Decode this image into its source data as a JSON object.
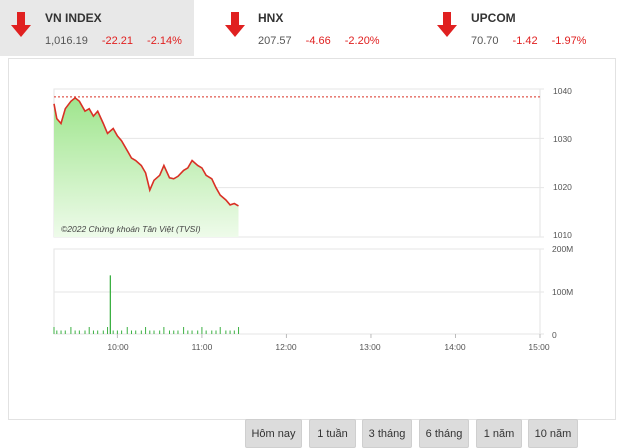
{
  "tabs": [
    {
      "name": "VN INDEX",
      "value": "1,016.19",
      "change": "-22.21",
      "percent": "-2.14%",
      "active": true
    },
    {
      "name": "HNX",
      "value": "207.57",
      "change": "-4.66",
      "percent": "-2.20%",
      "active": false
    },
    {
      "name": "UPCOM",
      "value": "70.70",
      "change": "-1.42",
      "percent": "-1.97%",
      "active": false
    }
  ],
  "chart": {
    "copyright": "©2022 Chứng khoán Tân Việt (TVSI)",
    "price_ticks": [
      "1040",
      "1030",
      "1020",
      "1010"
    ],
    "volume_ticks": [
      "200M",
      "100M",
      "0"
    ],
    "time_ticks": [
      "10:00",
      "11:00",
      "12:00",
      "13:00",
      "14:00",
      "15:00"
    ]
  },
  "chart_data": {
    "type": "line",
    "reference_level": 1038.4,
    "ylim": [
      1010,
      1040
    ],
    "x_range": [
      "09:15",
      "15:00"
    ],
    "price": [
      [
        "09:15",
        1037
      ],
      [
        "09:17",
        1034
      ],
      [
        "09:20",
        1033
      ],
      [
        "09:23",
        1036
      ],
      [
        "09:27",
        1037.5
      ],
      [
        "09:30",
        1038.2
      ],
      [
        "09:33",
        1037.5
      ],
      [
        "09:37",
        1035.5
      ],
      [
        "09:40",
        1036
      ],
      [
        "09:43",
        1034.5
      ],
      [
        "09:46",
        1035.5
      ],
      [
        "09:50",
        1033
      ],
      [
        "09:53",
        1031
      ],
      [
        "09:57",
        1032
      ],
      [
        "10:00",
        1030.5
      ],
      [
        "10:03",
        1029.5
      ],
      [
        "10:07",
        1027.5
      ],
      [
        "10:10",
        1026
      ],
      [
        "10:13",
        1025.5
      ],
      [
        "10:17",
        1024.5
      ],
      [
        "10:20",
        1023
      ],
      [
        "10:23",
        1019.5
      ],
      [
        "10:26",
        1021.5
      ],
      [
        "10:30",
        1022.5
      ],
      [
        "10:33",
        1024.5
      ],
      [
        "10:37",
        1022
      ],
      [
        "10:40",
        1021.8
      ],
      [
        "10:43",
        1022.3
      ],
      [
        "10:47",
        1023.5
      ],
      [
        "10:50",
        1024
      ],
      [
        "10:53",
        1025.5
      ],
      [
        "10:57",
        1024.5
      ],
      [
        "11:00",
        1024
      ],
      [
        "11:03",
        1022.5
      ],
      [
        "11:07",
        1021.8
      ],
      [
        "11:10",
        1020
      ],
      [
        "11:13",
        1018.5
      ],
      [
        "11:17",
        1017.5
      ],
      [
        "11:20",
        1016.5
      ],
      [
        "11:23",
        1016.8
      ],
      [
        "11:26",
        1016.3
      ]
    ],
    "volume_spike": {
      "time": "09:55",
      "value": 138
    }
  },
  "buttons": [
    "Hôm nay",
    "1 tuần",
    "3 tháng",
    "6 tháng",
    "1 năm",
    "10 năm"
  ],
  "colors": {
    "down": "#e02020",
    "line": "#d93025",
    "fill_top": "#9fe58d",
    "fill_bottom": "#eefbea",
    "volume": "#3cb043"
  },
  "icons": [
    "down-arrow-icon"
  ]
}
